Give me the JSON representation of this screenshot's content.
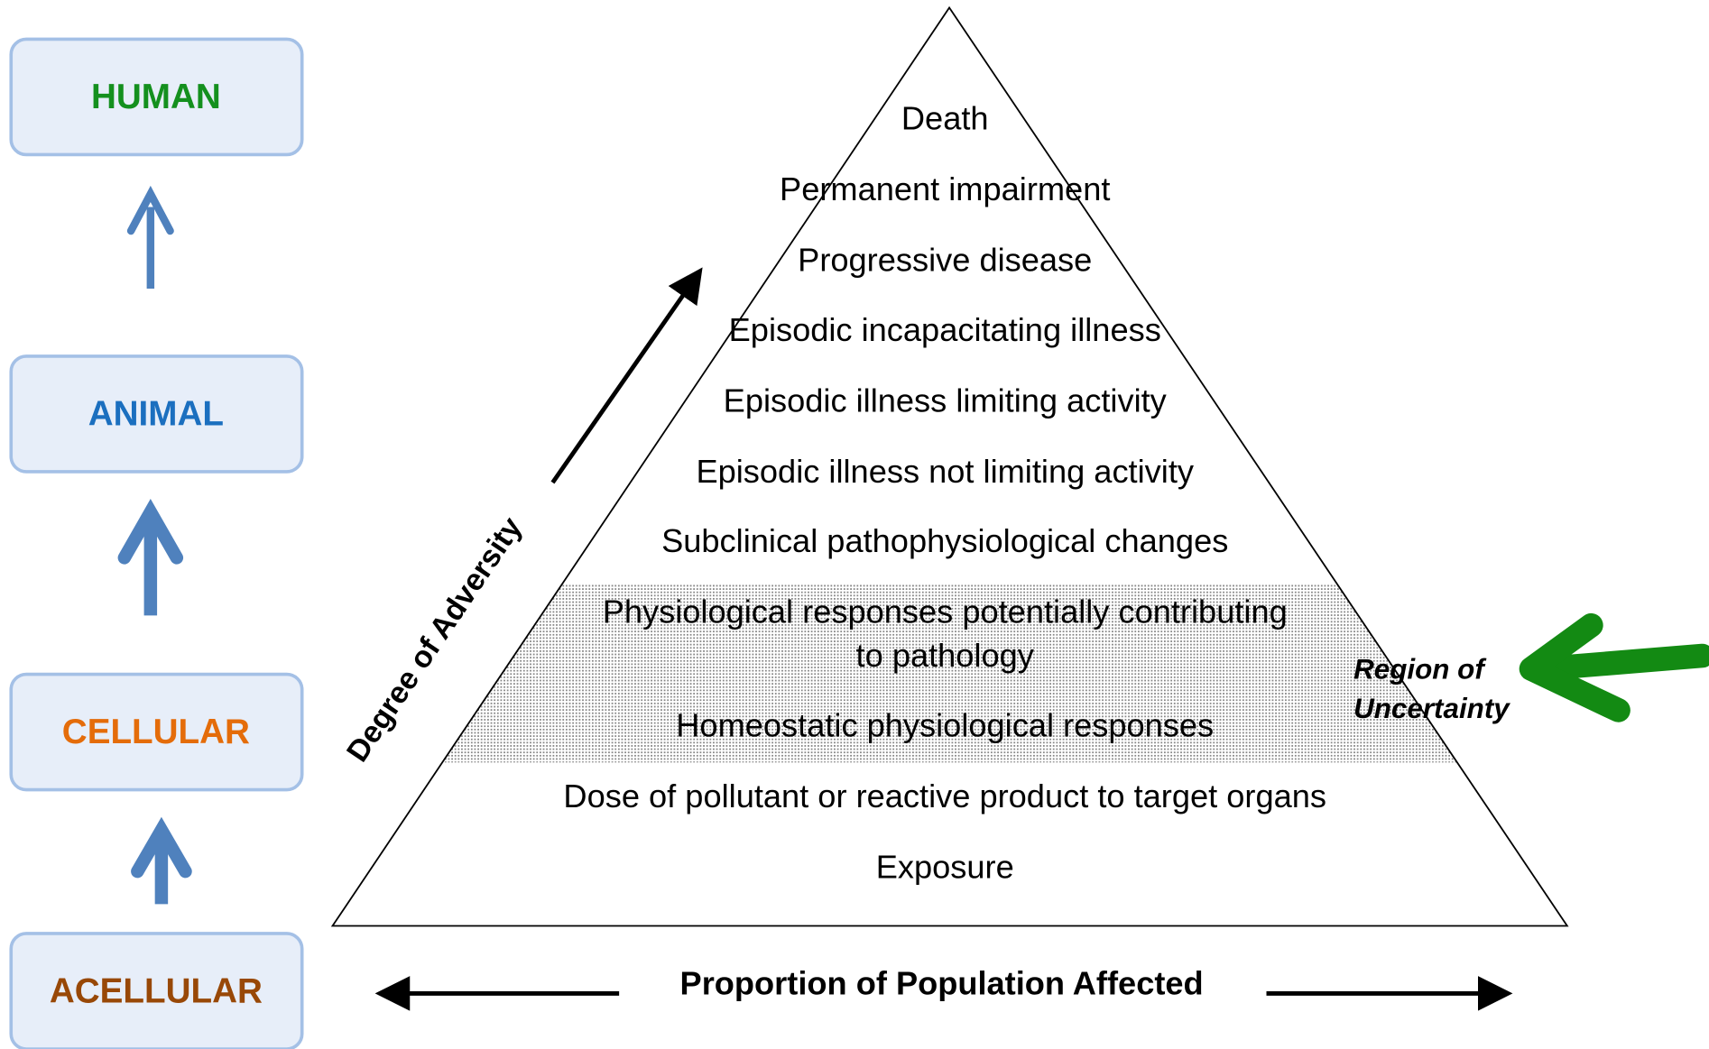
{
  "levels": [
    "HUMAN",
    "ANIMAL",
    "CELLULAR",
    "ACELLULAR"
  ],
  "tiers": [
    [
      "Death"
    ],
    [
      "Permanent impairment"
    ],
    [
      "Progressive disease"
    ],
    [
      "Episodic incapacitating illness"
    ],
    [
      "Episodic illness limiting activity"
    ],
    [
      "Episodic illness not limiting activity"
    ],
    [
      "Subclinical pathophysiological changes"
    ],
    [
      "Physiological responses potentially contributing",
      "to pathology"
    ],
    [
      "Homeostatic physiological responses"
    ],
    [
      "Dose of pollutant or reactive product to target organs"
    ],
    [
      "Exposure"
    ]
  ],
  "vertical_axis_label": "Degree of Adversity",
  "horizontal_axis_label": "Proportion of Population Affected",
  "region_label": [
    "Region of",
    "Uncertainty"
  ]
}
